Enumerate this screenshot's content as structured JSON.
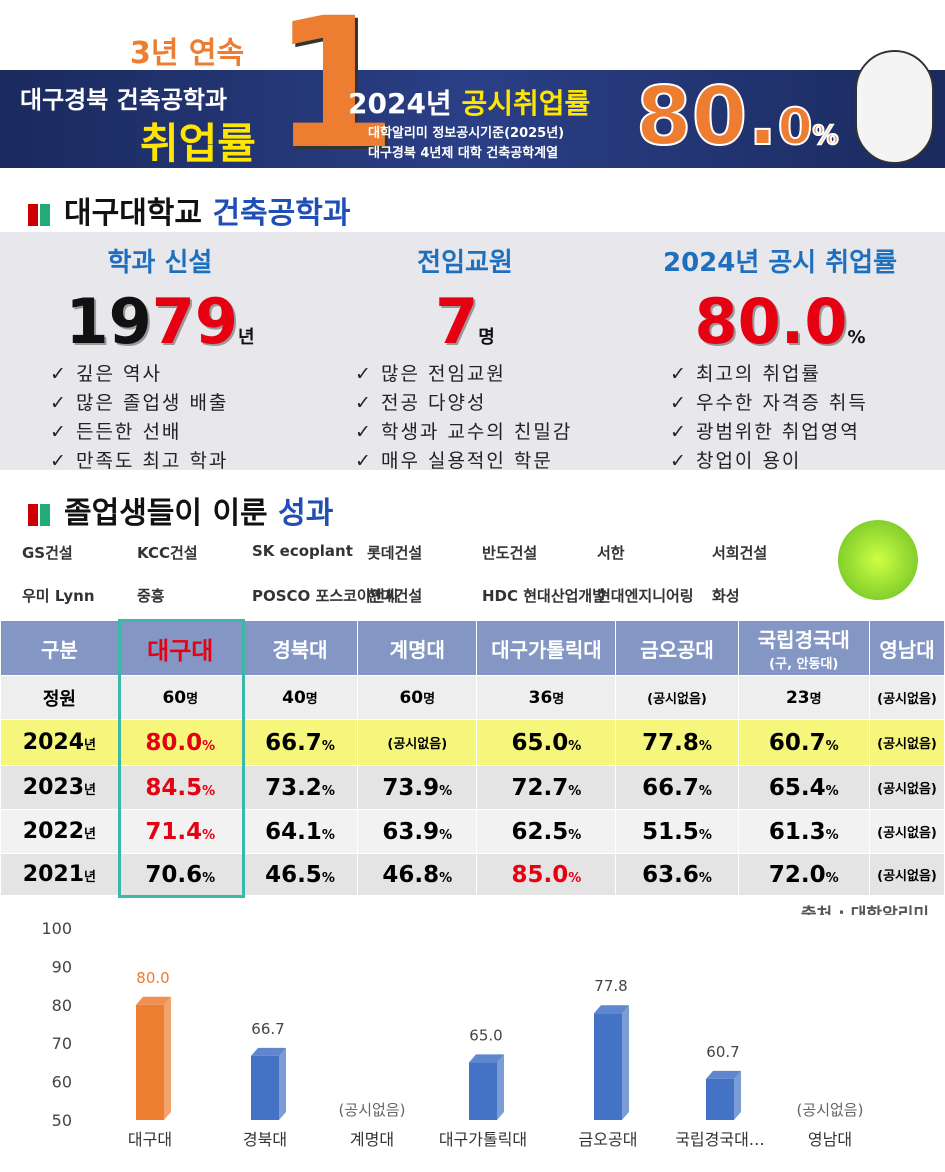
{
  "banner": {
    "streak": "3년 연속",
    "left_line1": "대구경북 건축공학과",
    "left_line2": "취업률",
    "rank": "1",
    "year": "2024년",
    "headline": "공시취업률",
    "note1": "대학알리미 정보공시기준(2025년)",
    "note2": "대구경북 4년제 대학 건축공학계열",
    "rate_int": "80.",
    "rate_dec": "0",
    "rate_unit": "%"
  },
  "intro": {
    "title_a": "대구대학교",
    "title_b": "건축공학과",
    "columns": [
      {
        "heading": "학과 신설",
        "figure": [
          {
            "text": "19",
            "color": "#111111"
          },
          {
            "text": "79",
            "color": "#e60012"
          }
        ],
        "unit": "년",
        "points": [
          "깊은 역사",
          "많은 졸업생 배출",
          "든든한 선배",
          "만족도 최고 학과"
        ]
      },
      {
        "heading": "전임교원",
        "figure": [
          {
            "text": "7",
            "color": "#e60012"
          }
        ],
        "unit": "명",
        "points": [
          "많은 전임교원",
          "전공 다양성",
          "학생과 교수의 친밀감",
          "매우 실용적인 학문"
        ]
      },
      {
        "heading": "2024년 공시 취업률",
        "figure": [
          {
            "text": "80.0",
            "color": "#e60012"
          }
        ],
        "unit": "%",
        "points": [
          "최고의 취업률",
          "우수한 자격증 취득",
          "광범위한 취업영역",
          "창업이 용이"
        ]
      }
    ]
  },
  "outcomes": {
    "title_a": "졸업생들이 이룬",
    "title_b": "성과",
    "companies": [
      "GS건설",
      "KCC건설",
      "SK ecoplant",
      "롯데건설",
      "반도건설",
      "서한",
      "서희건설",
      "우미 Lynn",
      "중흥",
      "POSCO 포스코이앤씨",
      "현대건설",
      "HDC 현대산업개발",
      "현대엔지니어링",
      "화성"
    ]
  },
  "table": {
    "header": [
      {
        "text": "구분"
      },
      {
        "text": "대구대",
        "color": "#e60012"
      },
      {
        "text": "경북대"
      },
      {
        "text": "계명대"
      },
      {
        "text": "대구가톨릭대"
      },
      {
        "text": "금오공대"
      },
      {
        "text": "국립경국대",
        "sub": "(구, 안동대)"
      },
      {
        "text": "영남대"
      }
    ],
    "rows": [
      {
        "head": "정원",
        "cells": [
          {
            "v": "60",
            "u": "명"
          },
          {
            "v": "40",
            "u": "명"
          },
          {
            "v": "60",
            "u": "명"
          },
          {
            "v": "36",
            "u": "명"
          },
          {
            "v": "(공시없음)"
          },
          {
            "v": "23",
            "u": "명"
          },
          {
            "v": "(공시없음)"
          }
        ]
      },
      {
        "head": "2024",
        "head_unit": "년",
        "cells": [
          {
            "v": "80.0",
            "u": "%",
            "color": "#e60012"
          },
          {
            "v": "66.7",
            "u": "%"
          },
          {
            "v": "(공시없음)"
          },
          {
            "v": "65.0",
            "u": "%"
          },
          {
            "v": "77.8",
            "u": "%"
          },
          {
            "v": "60.7",
            "u": "%"
          },
          {
            "v": "(공시없음)"
          }
        ]
      },
      {
        "head": "2023",
        "head_unit": "년",
        "cells": [
          {
            "v": "84.5",
            "u": "%",
            "color": "#e60012"
          },
          {
            "v": "73.2",
            "u": "%"
          },
          {
            "v": "73.9",
            "u": "%"
          },
          {
            "v": "72.7",
            "u": "%"
          },
          {
            "v": "66.7",
            "u": "%"
          },
          {
            "v": "65.4",
            "u": "%"
          },
          {
            "v": "(공시없음)"
          }
        ]
      },
      {
        "head": "2022",
        "head_unit": "년",
        "cells": [
          {
            "v": "71.4",
            "u": "%",
            "color": "#e60012"
          },
          {
            "v": "64.1",
            "u": "%"
          },
          {
            "v": "63.9",
            "u": "%"
          },
          {
            "v": "62.5",
            "u": "%"
          },
          {
            "v": "51.5",
            "u": "%"
          },
          {
            "v": "61.3",
            "u": "%"
          },
          {
            "v": "(공시없음)"
          }
        ]
      },
      {
        "head": "2021",
        "head_unit": "년",
        "cells": [
          {
            "v": "70.6",
            "u": "%"
          },
          {
            "v": "46.5",
            "u": "%"
          },
          {
            "v": "46.8",
            "u": "%"
          },
          {
            "v": "85.0",
            "u": "%",
            "color": "#e60012"
          },
          {
            "v": "63.6",
            "u": "%"
          },
          {
            "v": "72.0",
            "u": "%"
          },
          {
            "v": "(공시없음)"
          }
        ]
      }
    ],
    "source": "출처 : 대학알리미"
  },
  "chart_data": {
    "type": "bar",
    "categories": [
      "대구대",
      "경북대",
      "계명대",
      "대구가톨릭대",
      "금오공대",
      "국립경국대…",
      "영남대"
    ],
    "values": [
      80.0,
      66.7,
      null,
      65.0,
      77.8,
      60.7,
      null
    ],
    "value_labels": [
      "80.0",
      "66.7",
      "(공시없음)",
      "65.0",
      "77.8",
      "60.7",
      "(공시없음)"
    ],
    "colors": [
      "#ed7d31",
      "#4472c4",
      "#4472c4",
      "#4472c4",
      "#4472c4",
      "#4472c4",
      "#4472c4"
    ],
    "ylim": [
      50,
      100
    ],
    "yticks": [
      50,
      60,
      70,
      80,
      90,
      100
    ]
  }
}
